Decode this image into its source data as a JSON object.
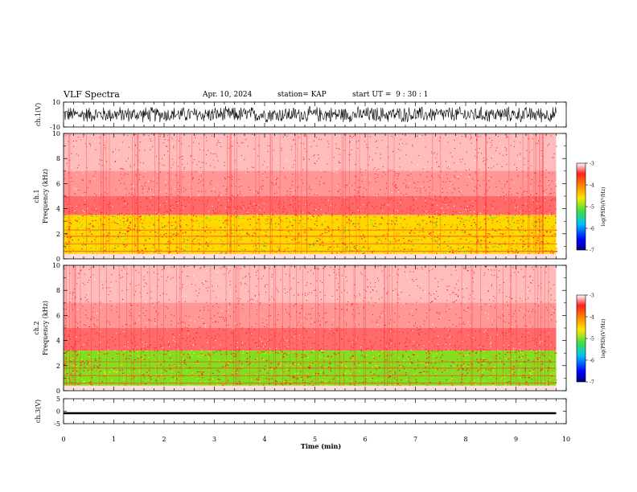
{
  "header": {
    "title": "VLF Spectra",
    "date": "Apr. 10, 2024",
    "station": "station= KAP",
    "start": "start UT =  9 : 30 : 1"
  },
  "chart_data": [
    {
      "type": "line",
      "panel": "ch1-waveform",
      "ylabel": "ch.1(V)",
      "ylim": [
        -10,
        10
      ],
      "yticks": [
        10,
        -10
      ],
      "xlim": [
        0,
        10
      ],
      "description_values": {
        "x_end_min": 9.8,
        "amplitude_range": [
          -7,
          7
        ]
      }
    },
    {
      "type": "heatmap",
      "panel": "ch1-spectrogram",
      "ylabel_line1": "ch.1",
      "ylabel_line2": "Frequency (kHz)",
      "ylim": [
        0,
        10
      ],
      "yticks": [
        0,
        2,
        4,
        6,
        8,
        10
      ],
      "xlim": [
        0,
        10
      ],
      "x_end_min": 9.8,
      "bands": [
        {
          "from_khz": 0.4,
          "to_khz": 3.5,
          "level": "yellow-green (-4.5 to -5)"
        },
        {
          "from_khz": 3.5,
          "to_khz": 10,
          "level": "red (-3.5 to -4)"
        }
      ],
      "colorbar": {
        "label": "log(PSD)(V²/Hz)",
        "ticks": [
          -3,
          -4,
          -5,
          -6,
          -7
        ],
        "range": [
          -7,
          -3
        ]
      }
    },
    {
      "type": "heatmap",
      "panel": "ch2-spectrogram",
      "ylabel_line1": "ch.2",
      "ylabel_line2": "Frequency (kHz)",
      "ylim": [
        0,
        10
      ],
      "yticks": [
        0,
        2,
        4,
        6,
        8,
        10
      ],
      "xlim": [
        0,
        10
      ],
      "x_end_min": 9.8,
      "bands": [
        {
          "from_khz": 0.4,
          "to_khz": 3.2,
          "level": "green-yellow (-4.5 to -5.2)"
        },
        {
          "from_khz": 3.2,
          "to_khz": 10,
          "level": "red (-3.5 to -4)"
        }
      ],
      "colorbar": {
        "label": "log(PSD)(V²/Hz)",
        "ticks": [
          -3,
          -4,
          -5,
          -6,
          -7
        ],
        "range": [
          -7,
          -3
        ]
      }
    },
    {
      "type": "line",
      "panel": "ch3-waveform",
      "ylabel": "ch.3(V)",
      "ylim": [
        -5,
        5
      ],
      "yticks": [
        5,
        0,
        -5
      ],
      "xlim": [
        0,
        10
      ],
      "xlabel": "Time (min)",
      "xticks": [
        0,
        1,
        2,
        3,
        4,
        5,
        6,
        7,
        8,
        9,
        10
      ],
      "description_values": {
        "x_end_min": 9.8,
        "level_V": -0.8,
        "amplitude_range": [
          -1.2,
          -0.4
        ]
      }
    }
  ],
  "colors": {
    "axis": "#000000",
    "red": "#ff2020",
    "yellow": "#ffe600",
    "green": "#40e040"
  }
}
